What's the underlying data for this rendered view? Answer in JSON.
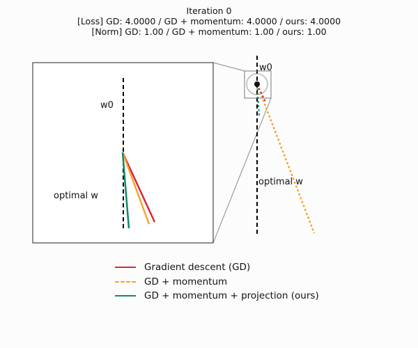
{
  "title": {
    "line1": "Iteration 0",
    "line2": "[Loss] GD: 4.0000 / GD + momentum: 4.0000 / ours: 4.0000",
    "line3": "[Norm] GD: 1.00 / GD + momentum: 1.00 / ours: 1.00"
  },
  "annotations": {
    "w0_label": "w0",
    "optimal_label": "optimal w"
  },
  "legend": {
    "items": [
      {
        "name": "gd",
        "label": "Gradient descent (GD)",
        "color": "#d62738",
        "style": "solid"
      },
      {
        "name": "momentum",
        "label": "GD + momentum",
        "color": "#f2a531",
        "style": "dashed"
      },
      {
        "name": "ours",
        "label": "GD + momentum + projection (ours)",
        "color": "#0f8a6a",
        "style": "solid"
      }
    ]
  },
  "colors": {
    "gd": "#d62738",
    "momentum": "#f2a531",
    "ours": "#0f8a6a",
    "axis_line": "#000000",
    "inset_frame": "#222222",
    "connector": "#888888"
  }
}
